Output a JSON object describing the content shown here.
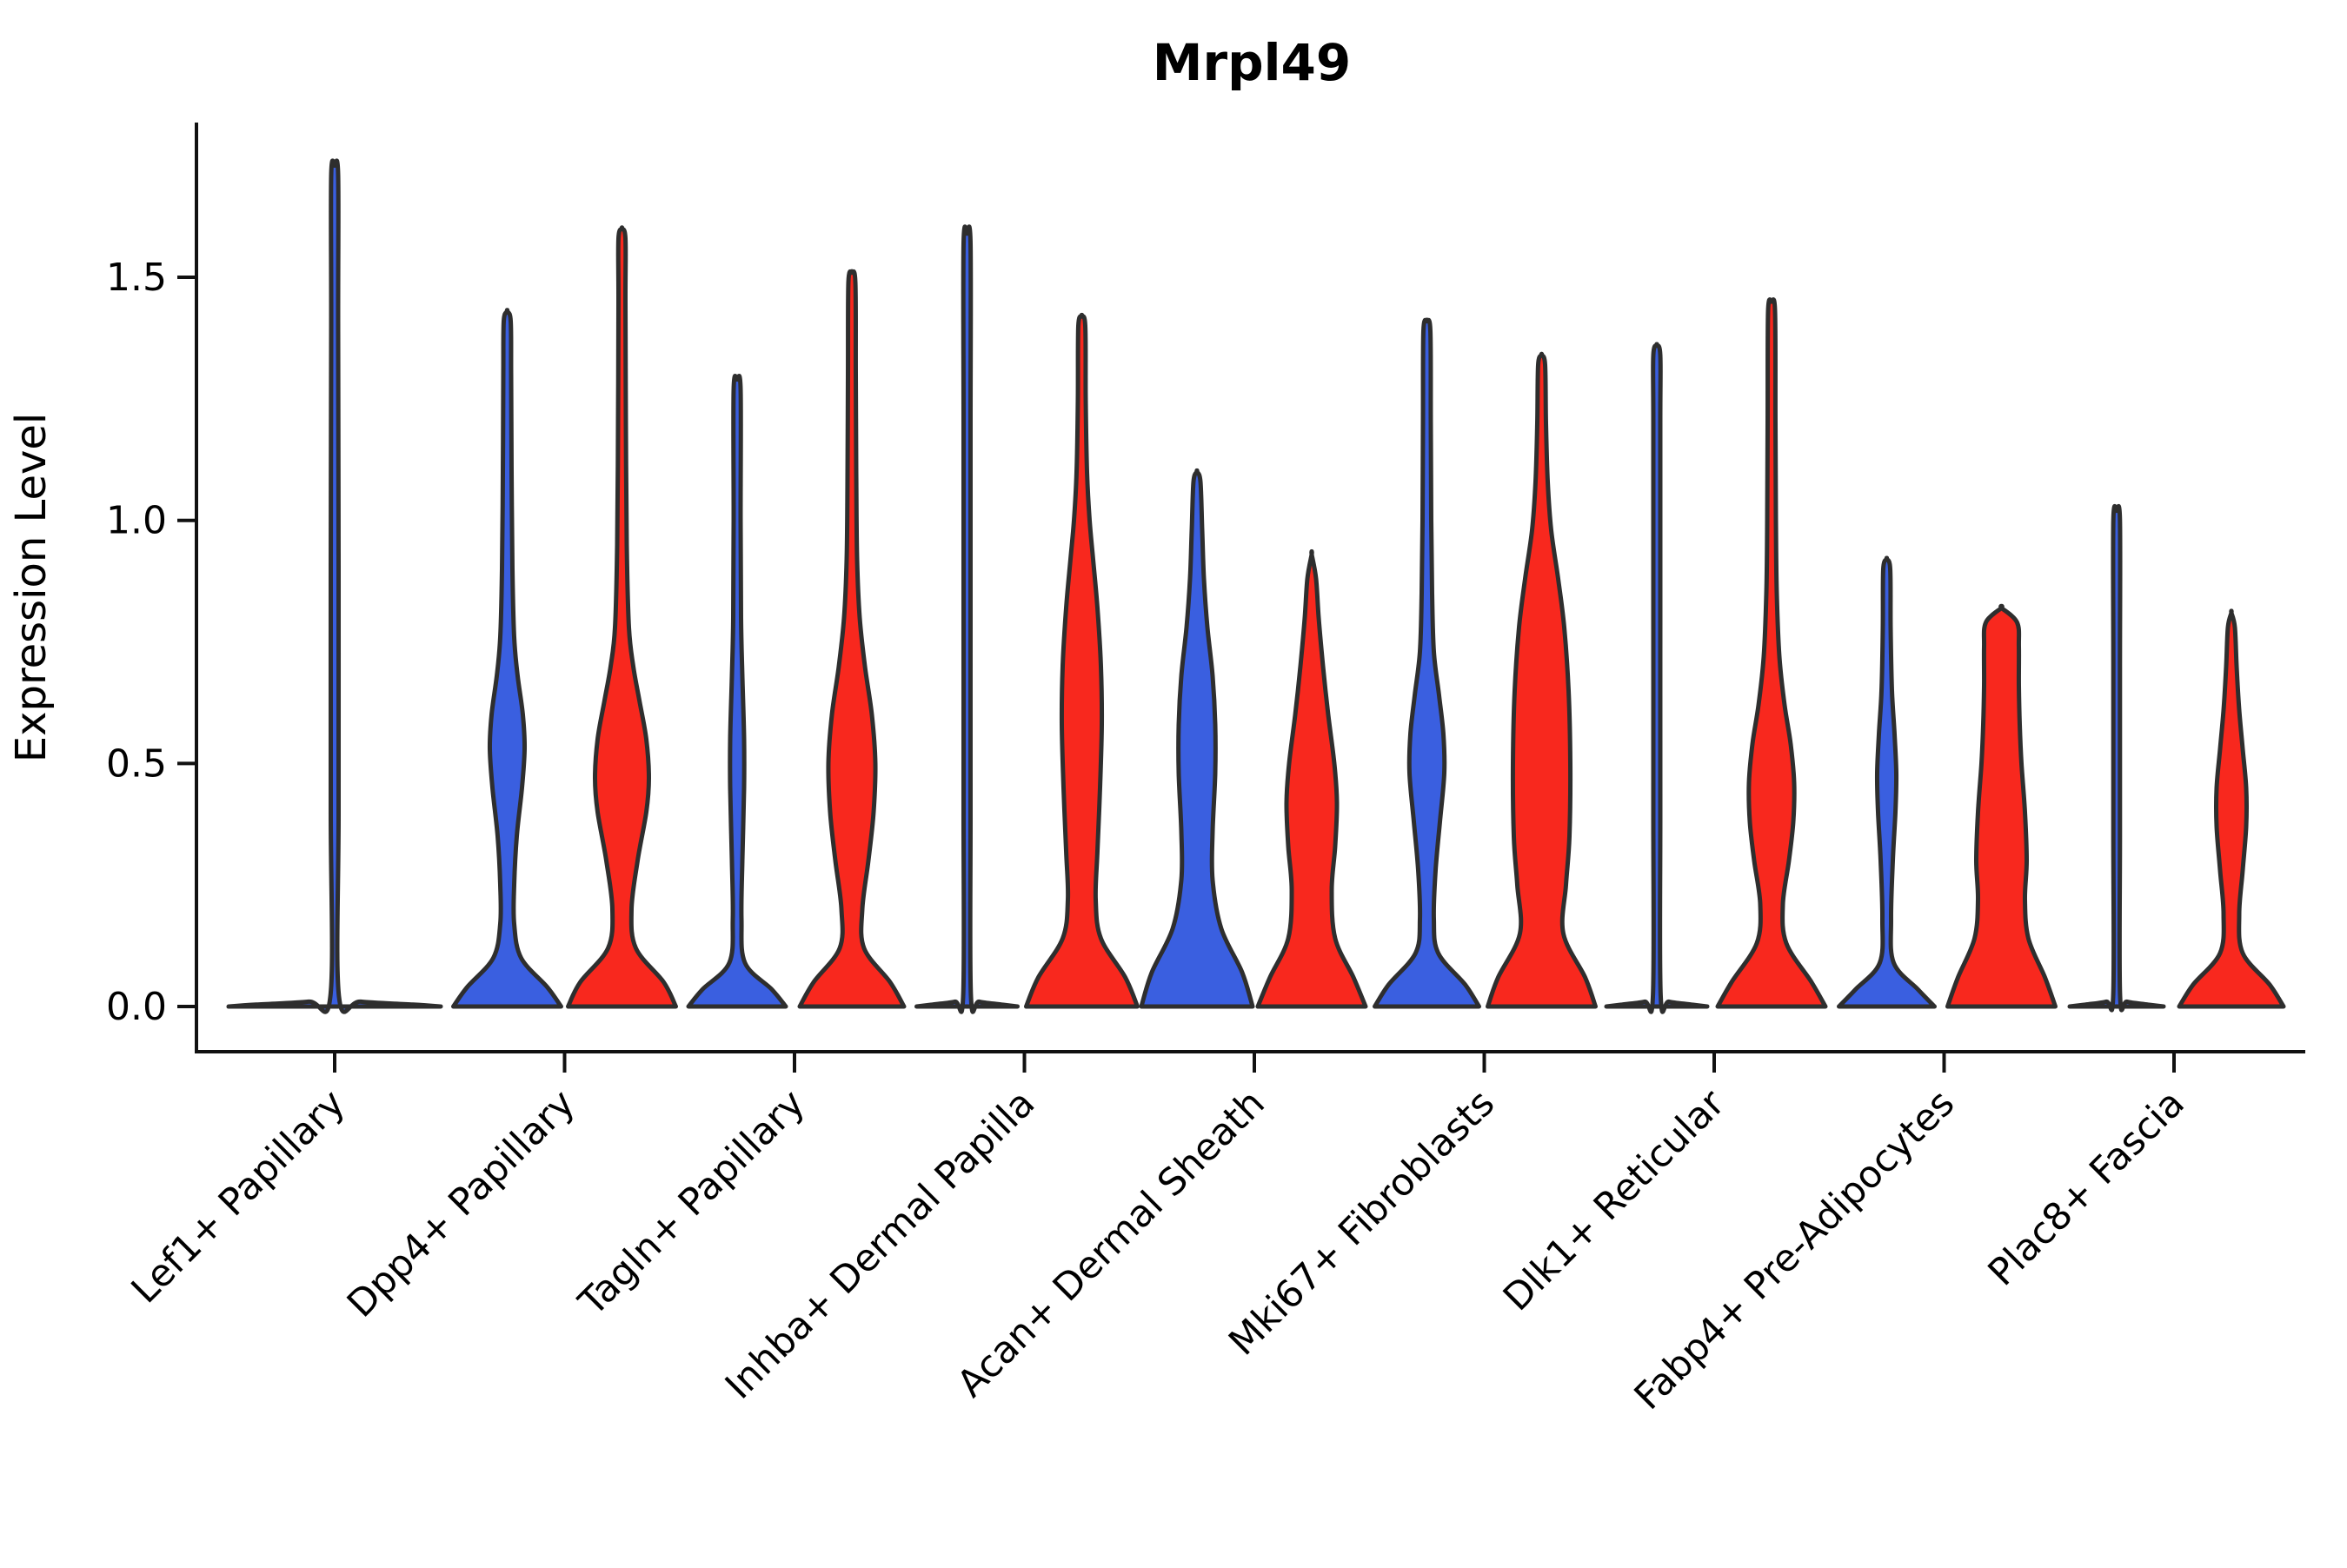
{
  "chart_data": {
    "type": "violin",
    "title": "Mrpl49",
    "ylabel": "Expression Level",
    "xlabel": "",
    "yticks": [
      "0.0",
      "0.5",
      "1.0",
      "1.5"
    ],
    "ytick_values": [
      0.0,
      0.5,
      1.0,
      1.5
    ],
    "ylim": [
      -0.09,
      1.82
    ],
    "grid": false,
    "legend": "none",
    "categories": [
      "Lef1+ Papillary",
      "Dpp4+ Papillary",
      "Tagln+ Papillary",
      "Inhba+ Dermal Papilla",
      "Acan+ Dermal Sheath",
      "Mki67+ Fibroblasts",
      "Dlk1+ Reticular",
      "Fabp4+ Pre-Adipocytes",
      "Plac8+ Fascia"
    ],
    "series": [
      {
        "name": "split-group-blue",
        "color": "#3a5fe0"
      },
      {
        "name": "split-group-red",
        "color": "#f8281e"
      }
    ],
    "outline_color": "#2e2e2e",
    "axis_color": "#111111",
    "violins": [
      {
        "category": 0,
        "side": 0,
        "color": "blue",
        "max_expression": 1.73,
        "profile": [
          [
            0,
            122
          ],
          [
            0.004,
            90
          ],
          [
            0.01,
            30
          ],
          [
            0.02,
            5
          ],
          [
            0.4,
            4.5
          ],
          [
            0.9,
            4.5
          ],
          [
            1.4,
            4
          ],
          [
            1.71,
            4
          ],
          [
            1.73,
            0
          ]
        ]
      },
      {
        "category": 1,
        "side": -1,
        "color": "blue",
        "max_expression": 1.43,
        "profile": [
          [
            0,
            62
          ],
          [
            0.04,
            46
          ],
          [
            0.1,
            16
          ],
          [
            0.17,
            8
          ],
          [
            0.25,
            8
          ],
          [
            0.35,
            11
          ],
          [
            0.45,
            17
          ],
          [
            0.53,
            20
          ],
          [
            0.6,
            18
          ],
          [
            0.68,
            12
          ],
          [
            0.76,
            8
          ],
          [
            0.9,
            6
          ],
          [
            1.1,
            5
          ],
          [
            1.3,
            4.5
          ],
          [
            1.41,
            4
          ],
          [
            1.43,
            0
          ]
        ]
      },
      {
        "category": 1,
        "side": 1,
        "color": "red",
        "max_expression": 1.6,
        "profile": [
          [
            0,
            62
          ],
          [
            0.05,
            48
          ],
          [
            0.12,
            16
          ],
          [
            0.2,
            11
          ],
          [
            0.3,
            18
          ],
          [
            0.4,
            28
          ],
          [
            0.47,
            31
          ],
          [
            0.55,
            28
          ],
          [
            0.63,
            20
          ],
          [
            0.7,
            13
          ],
          [
            0.78,
            8
          ],
          [
            0.95,
            5.5
          ],
          [
            1.2,
            4.5
          ],
          [
            1.45,
            4
          ],
          [
            1.58,
            4
          ],
          [
            1.6,
            0
          ]
        ]
      },
      {
        "category": 2,
        "side": -1,
        "color": "blue",
        "max_expression": 1.29,
        "profile": [
          [
            0,
            56
          ],
          [
            0.035,
            40
          ],
          [
            0.09,
            9
          ],
          [
            0.18,
            5
          ],
          [
            0.3,
            6
          ],
          [
            0.45,
            8
          ],
          [
            0.55,
            8
          ],
          [
            0.68,
            6
          ],
          [
            0.8,
            4.5
          ],
          [
            1.0,
            4
          ],
          [
            1.27,
            4
          ],
          [
            1.29,
            0
          ]
        ]
      },
      {
        "category": 2,
        "side": 1,
        "color": "red",
        "max_expression": 1.51,
        "profile": [
          [
            0,
            60
          ],
          [
            0.05,
            44
          ],
          [
            0.12,
            14
          ],
          [
            0.2,
            12
          ],
          [
            0.3,
            19
          ],
          [
            0.4,
            25
          ],
          [
            0.5,
            27
          ],
          [
            0.6,
            23
          ],
          [
            0.7,
            15
          ],
          [
            0.8,
            9
          ],
          [
            0.92,
            6
          ],
          [
            1.1,
            5
          ],
          [
            1.3,
            4.5
          ],
          [
            1.49,
            4
          ],
          [
            1.51,
            0
          ]
        ]
      },
      {
        "category": 3,
        "side": -1,
        "color": "blue",
        "max_expression": 1.59,
        "profile": [
          [
            0,
            58
          ],
          [
            0.004,
            40
          ],
          [
            0.01,
            14
          ],
          [
            0.02,
            4.5
          ],
          [
            0.4,
            4
          ],
          [
            0.8,
            4
          ],
          [
            1.2,
            4
          ],
          [
            1.57,
            4
          ],
          [
            1.59,
            0
          ]
        ]
      },
      {
        "category": 3,
        "side": 1,
        "color": "red",
        "max_expression": 1.42,
        "profile": [
          [
            0,
            64
          ],
          [
            0.06,
            50
          ],
          [
            0.14,
            22
          ],
          [
            0.22,
            16
          ],
          [
            0.32,
            18
          ],
          [
            0.45,
            21
          ],
          [
            0.58,
            23
          ],
          [
            0.7,
            22
          ],
          [
            0.82,
            18
          ],
          [
            0.92,
            13
          ],
          [
            1.0,
            9
          ],
          [
            1.1,
            6
          ],
          [
            1.25,
            4.5
          ],
          [
            1.4,
            4
          ],
          [
            1.42,
            0
          ]
        ]
      },
      {
        "category": 4,
        "side": -1,
        "color": "blue",
        "max_expression": 1.1,
        "profile": [
          [
            0,
            64
          ],
          [
            0.07,
            52
          ],
          [
            0.16,
            28
          ],
          [
            0.26,
            18
          ],
          [
            0.36,
            18
          ],
          [
            0.48,
            21
          ],
          [
            0.58,
            21
          ],
          [
            0.68,
            18
          ],
          [
            0.78,
            12
          ],
          [
            0.88,
            8
          ],
          [
            0.98,
            6
          ],
          [
            1.08,
            4
          ],
          [
            1.1,
            0
          ]
        ]
      },
      {
        "category": 4,
        "side": 1,
        "color": "red",
        "max_expression": 0.93,
        "profile": [
          [
            0,
            62
          ],
          [
            0.06,
            48
          ],
          [
            0.14,
            27
          ],
          [
            0.24,
            23
          ],
          [
            0.33,
            27
          ],
          [
            0.42,
            29
          ],
          [
            0.5,
            26
          ],
          [
            0.6,
            19
          ],
          [
            0.7,
            13
          ],
          [
            0.8,
            8
          ],
          [
            0.88,
            5
          ],
          [
            0.93,
            0
          ]
        ]
      },
      {
        "category": 5,
        "side": -1,
        "color": "blue",
        "max_expression": 1.41,
        "profile": [
          [
            0,
            60
          ],
          [
            0.045,
            44
          ],
          [
            0.11,
            13
          ],
          [
            0.18,
            8
          ],
          [
            0.28,
            10
          ],
          [
            0.38,
            15
          ],
          [
            0.48,
            20
          ],
          [
            0.56,
            19
          ],
          [
            0.64,
            14
          ],
          [
            0.73,
            8
          ],
          [
            0.85,
            6
          ],
          [
            1.0,
            5
          ],
          [
            1.2,
            4.5
          ],
          [
            1.39,
            4
          ],
          [
            1.41,
            0
          ]
        ]
      },
      {
        "category": 5,
        "side": 1,
        "color": "red",
        "max_expression": 1.34,
        "profile": [
          [
            0,
            62
          ],
          [
            0.06,
            50
          ],
          [
            0.15,
            25
          ],
          [
            0.25,
            28
          ],
          [
            0.35,
            32
          ],
          [
            0.5,
            33
          ],
          [
            0.65,
            31
          ],
          [
            0.78,
            26
          ],
          [
            0.88,
            19
          ],
          [
            0.98,
            11
          ],
          [
            1.08,
            7
          ],
          [
            1.2,
            5
          ],
          [
            1.32,
            4
          ],
          [
            1.34,
            0
          ]
        ]
      },
      {
        "category": 6,
        "side": -1,
        "color": "blue",
        "max_expression": 1.36,
        "profile": [
          [
            0,
            58
          ],
          [
            0.004,
            40
          ],
          [
            0.01,
            14
          ],
          [
            0.02,
            4.5
          ],
          [
            0.4,
            4
          ],
          [
            0.8,
            4
          ],
          [
            1.2,
            4
          ],
          [
            1.34,
            4
          ],
          [
            1.36,
            0
          ]
        ]
      },
      {
        "category": 6,
        "side": 1,
        "color": "red",
        "max_expression": 1.45,
        "profile": [
          [
            0,
            62
          ],
          [
            0.05,
            46
          ],
          [
            0.13,
            17
          ],
          [
            0.21,
            13
          ],
          [
            0.3,
            20
          ],
          [
            0.38,
            25
          ],
          [
            0.46,
            26
          ],
          [
            0.54,
            22
          ],
          [
            0.62,
            15
          ],
          [
            0.72,
            9
          ],
          [
            0.85,
            6
          ],
          [
            1.0,
            5
          ],
          [
            1.2,
            4.5
          ],
          [
            1.43,
            4
          ],
          [
            1.45,
            0
          ]
        ]
      },
      {
        "category": 7,
        "side": -1,
        "color": "blue",
        "max_expression": 0.92,
        "profile": [
          [
            0,
            55
          ],
          [
            0.035,
            36
          ],
          [
            0.09,
            8
          ],
          [
            0.18,
            5
          ],
          [
            0.3,
            7
          ],
          [
            0.4,
            10
          ],
          [
            0.48,
            11
          ],
          [
            0.56,
            9
          ],
          [
            0.65,
            6
          ],
          [
            0.78,
            4.5
          ],
          [
            0.9,
            4
          ],
          [
            0.92,
            0
          ]
        ]
      },
      {
        "category": 7,
        "side": 1,
        "color": "red",
        "max_expression": 0.82,
        "profile": [
          [
            0,
            62
          ],
          [
            0.06,
            50
          ],
          [
            0.14,
            31
          ],
          [
            0.22,
            27
          ],
          [
            0.3,
            29
          ],
          [
            0.4,
            27
          ],
          [
            0.5,
            23
          ],
          [
            0.58,
            21
          ],
          [
            0.66,
            20
          ],
          [
            0.74,
            20
          ],
          [
            0.79,
            18
          ],
          [
            0.82,
            0
          ]
        ]
      },
      {
        "category": 8,
        "side": -1,
        "color": "blue",
        "max_expression": 1.02,
        "profile": [
          [
            0,
            54
          ],
          [
            0.004,
            36
          ],
          [
            0.01,
            12
          ],
          [
            0.02,
            4
          ],
          [
            0.35,
            3.8
          ],
          [
            0.7,
            3.8
          ],
          [
            1.0,
            3.8
          ],
          [
            1.02,
            0
          ]
        ]
      },
      {
        "category": 8,
        "side": 1,
        "color": "red",
        "max_expression": 0.81,
        "profile": [
          [
            0,
            60
          ],
          [
            0.045,
            44
          ],
          [
            0.11,
            13
          ],
          [
            0.19,
            9
          ],
          [
            0.28,
            13
          ],
          [
            0.37,
            17
          ],
          [
            0.45,
            17
          ],
          [
            0.53,
            13
          ],
          [
            0.61,
            9
          ],
          [
            0.7,
            6
          ],
          [
            0.78,
            4
          ],
          [
            0.81,
            0
          ]
        ]
      }
    ]
  }
}
